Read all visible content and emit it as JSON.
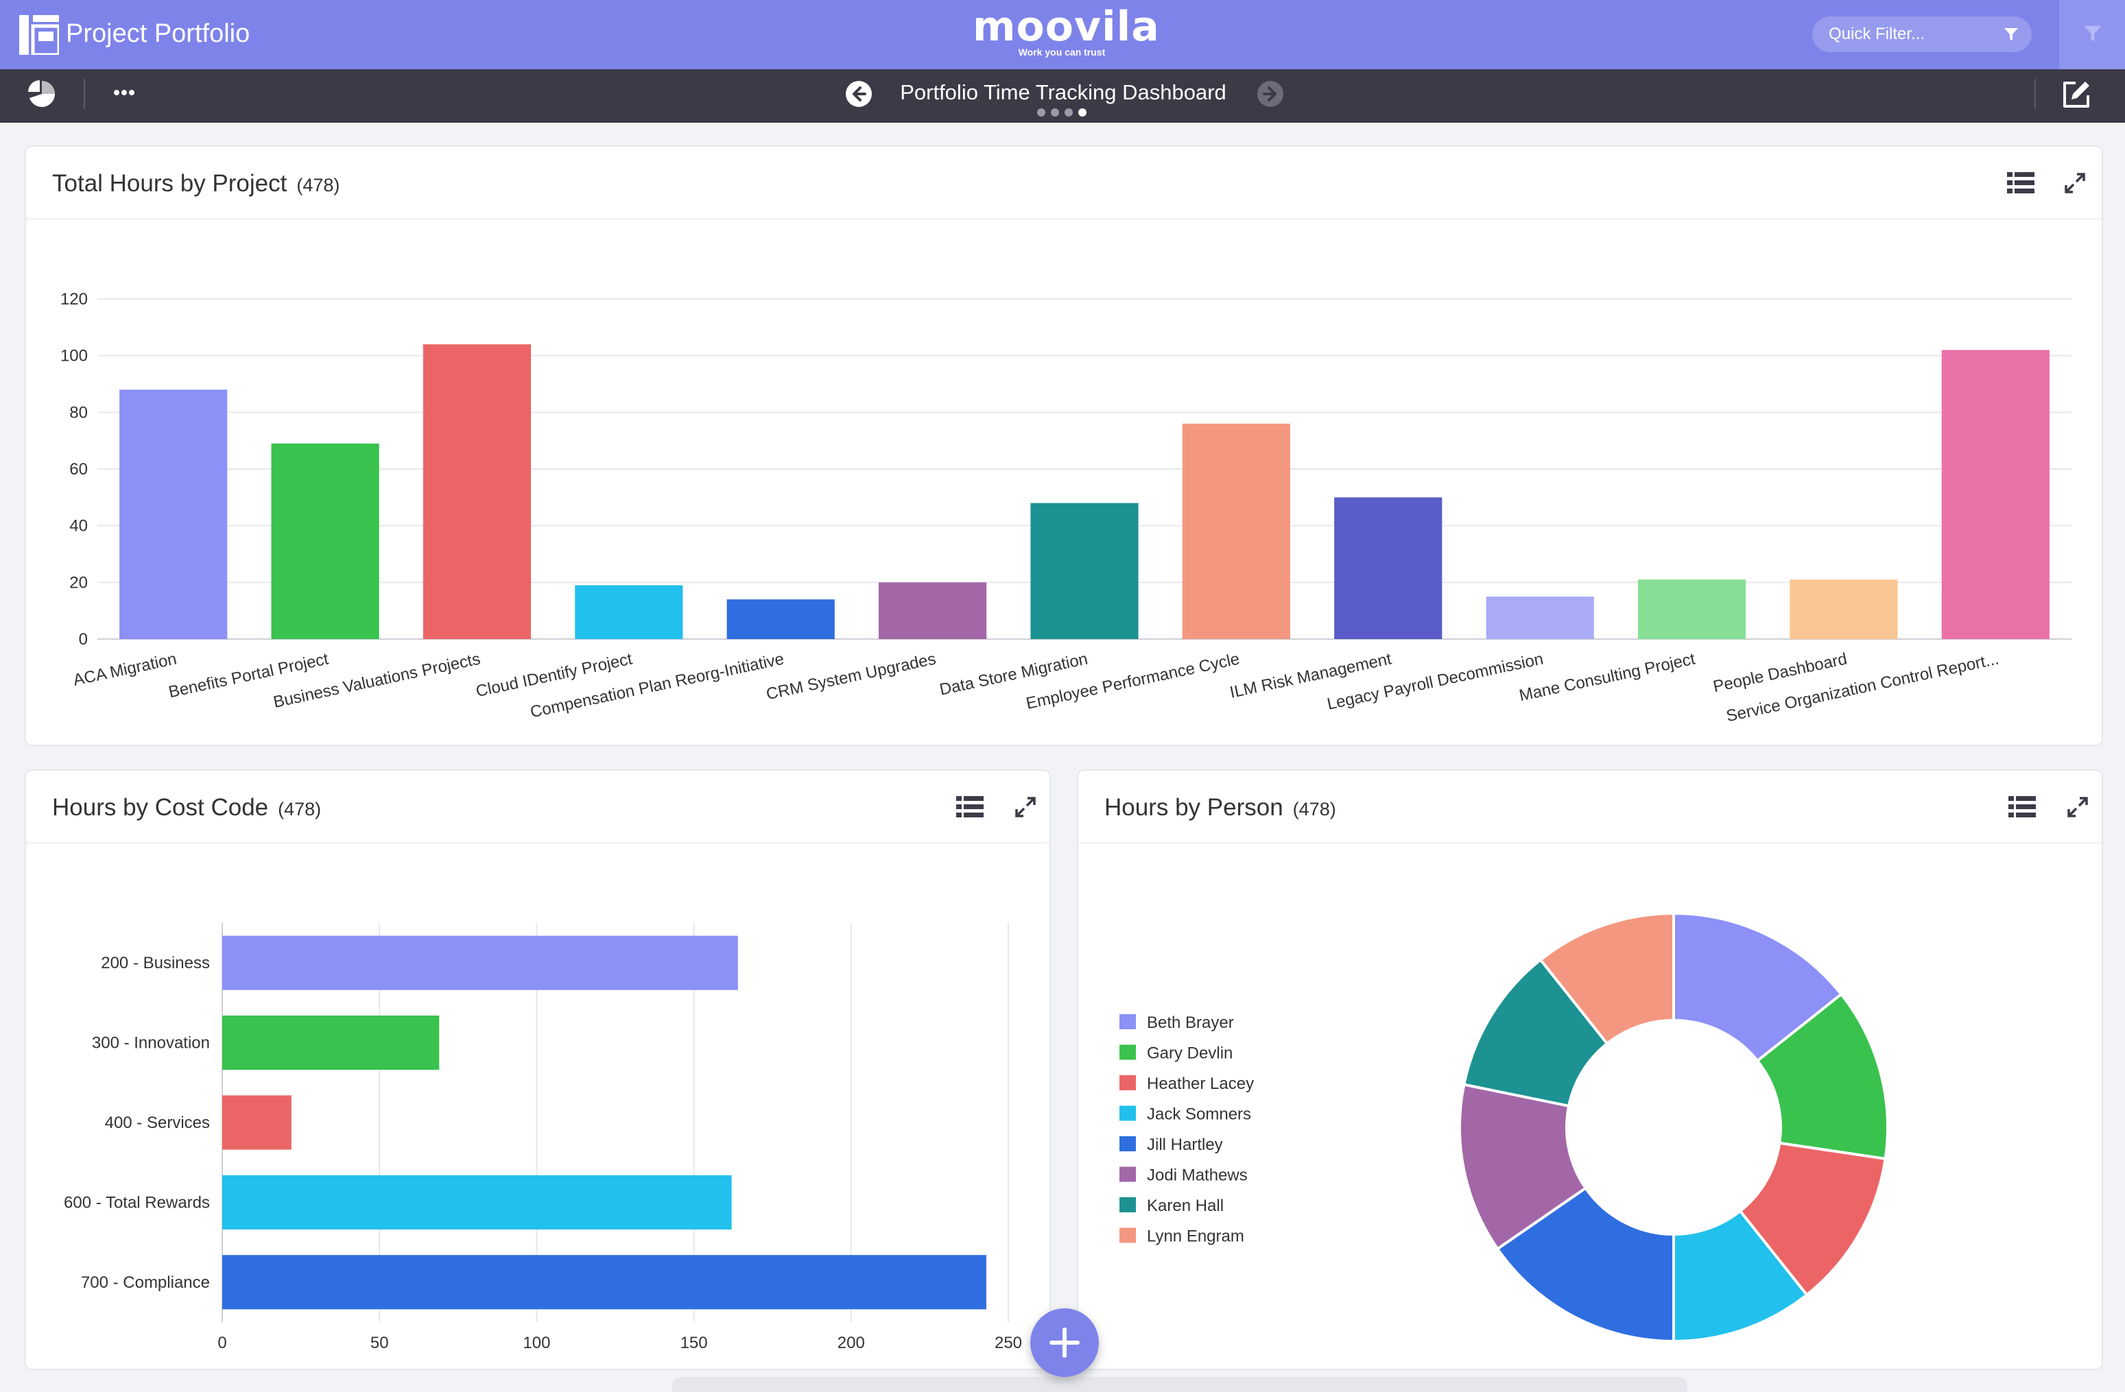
{
  "app": {
    "title": "Project Portfolio"
  },
  "logo": {
    "word": "moovila",
    "tagline": "Work you can trust"
  },
  "quick_filter": {
    "placeholder": "Quick Filter..."
  },
  "dashboard": {
    "title": "Portfolio Time Tracking Dashboard",
    "page_count": 4,
    "active_page": 4
  },
  "colors": {
    "header": "#7e83ea",
    "subheader": "#3a3b47",
    "palette": [
      "#8c90f7",
      "#39c24e",
      "#ec6566",
      "#22c0ec",
      "#2f6ee0",
      "#a367a8",
      "#1c9292",
      "#f49780",
      "#595cc9",
      "#a9abf7",
      "#86df95",
      "#fac693",
      "#ea70a8"
    ]
  },
  "panels": {
    "projects": {
      "title": "Total Hours by Project",
      "count": "(478)"
    },
    "cost_code": {
      "title": "Hours by Cost Code",
      "count": "(478)"
    },
    "person": {
      "title": "Hours by Person",
      "count": "(478)"
    }
  },
  "chart_data": [
    {
      "type": "bar",
      "title": "Total Hours by Project",
      "categories": [
        "ACA Migration",
        "Benefits Portal Project",
        "Business Valuations Projects",
        "Cloud IDentify Project",
        "Compensation Plan Reorg-Initiative",
        "CRM System Upgrades",
        "Data Store Migration",
        "Employee Performance Cycle",
        "ILM Risk Management",
        "Legacy Payroll Decommission",
        "Mane Consulting Project",
        "People Dashboard",
        "Service Organization Control Report..."
      ],
      "values": [
        88,
        69,
        104,
        19,
        14,
        20,
        48,
        76,
        50,
        15,
        21,
        21,
        102
      ],
      "ylim": [
        0,
        120
      ],
      "yticks": [
        0,
        20,
        40,
        60,
        80,
        100,
        120
      ],
      "grid": true
    },
    {
      "type": "bar",
      "orientation": "horizontal",
      "title": "Hours by Cost Code",
      "categories": [
        "200 - Business",
        "300 - Innovation",
        "400 - Services",
        "600 - Total Rewards",
        "700 - Compliance"
      ],
      "values": [
        164,
        69,
        22,
        162,
        243
      ],
      "xlim": [
        0,
        250
      ],
      "xticks": [
        0,
        50,
        100,
        150,
        200,
        250
      ],
      "grid": true
    },
    {
      "type": "pie",
      "donut": true,
      "title": "Hours by Person",
      "labels": [
        "Beth Brayer",
        "Gary Devlin",
        "Heather Lacey",
        "Jack Somners",
        "Jill Hartley",
        "Jodi Mathews",
        "Karen Hall",
        "Lynn Engram"
      ],
      "values": [
        67,
        61,
        56,
        50,
        72,
        60,
        52,
        50
      ],
      "legend": "left"
    }
  ]
}
